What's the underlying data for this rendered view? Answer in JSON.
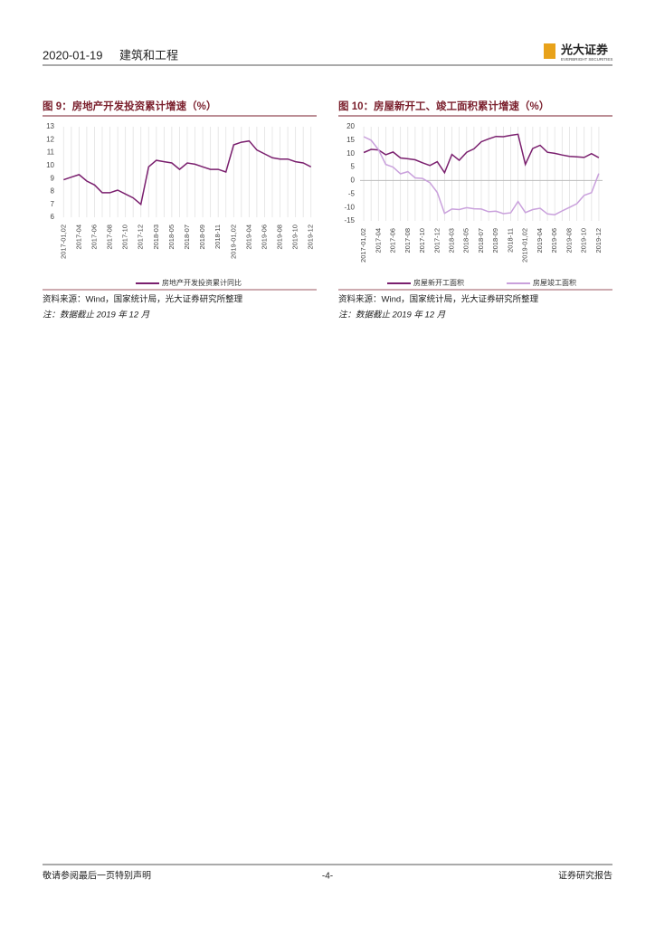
{
  "header": {
    "date": "2020-01-19",
    "section": "建筑和工程",
    "logo_cn": "光大证券",
    "logo_en": "EVERBRIGHT SECURITIES"
  },
  "chart_data": [
    {
      "type": "line",
      "title": "图 9：房地产开发投资累计增速（%）",
      "categories": [
        "2017-01,02",
        null,
        "2017-04",
        null,
        "2017-06",
        null,
        "2017-08",
        null,
        "2017-10",
        null,
        "2017-12",
        null,
        "2018-03",
        null,
        "2018-05",
        null,
        "2018-07",
        null,
        "2018-09",
        null,
        "2018-11",
        null,
        "2019-01,02",
        null,
        "2019-04",
        null,
        "2019-06",
        null,
        "2019-08",
        null,
        "2019-10",
        null,
        "2019-12"
      ],
      "series": [
        {
          "name": "房地产开发投资累计同比",
          "color": "#7a1f6e",
          "values": [
            8.9,
            9.1,
            9.3,
            8.8,
            8.5,
            7.9,
            7.9,
            8.1,
            7.8,
            7.5,
            7.0,
            9.9,
            10.4,
            10.3,
            10.2,
            9.7,
            10.2,
            10.1,
            9.9,
            9.7,
            9.7,
            9.5,
            11.6,
            11.8,
            11.9,
            11.2,
            10.9,
            10.6,
            10.5,
            10.5,
            10.3,
            10.2,
            9.9
          ]
        }
      ],
      "ylim": [
        6,
        13
      ],
      "yticks": [
        6,
        7,
        8,
        9,
        10,
        11,
        12,
        13
      ],
      "grid": "x",
      "source": "资料来源：Wind，国家统计局，光大证券研究所整理",
      "note": "注：数据截止 2019 年 12 月"
    },
    {
      "type": "line",
      "title": "图 10：房屋新开工、竣工面积累计增速（%）",
      "categories": [
        "2017-01,02",
        null,
        "2017-04",
        null,
        "2017-06",
        null,
        "2017-08",
        null,
        "2017-10",
        null,
        "2017-12",
        null,
        "2018-03",
        null,
        "2018-05",
        null,
        "2018-07",
        null,
        "2018-09",
        null,
        "2018-11",
        null,
        "2019-01,02",
        null,
        "2019-04",
        null,
        "2019-06",
        null,
        "2019-08",
        null,
        "2019-10",
        null,
        "2019-12"
      ],
      "series": [
        {
          "name": "房屋新开工面积",
          "color": "#7a1f6e",
          "values": [
            10.4,
            11.6,
            11.4,
            9.6,
            10.6,
            8.4,
            8.1,
            7.7,
            6.6,
            5.6,
            7.0,
            2.9,
            9.7,
            7.5,
            10.5,
            11.8,
            14.4,
            15.5,
            16.4,
            16.3,
            16.8,
            17.2,
            6.0,
            11.9,
            13.1,
            10.5,
            10.1,
            9.5,
            9.0,
            8.8,
            8.6,
            10.0,
            8.5
          ]
        },
        {
          "name": "房屋竣工面积",
          "color": "#c9a0dc",
          "values": [
            16.3,
            15.0,
            11.5,
            6.0,
            5.0,
            2.5,
            3.3,
            1.0,
            0.8,
            -0.8,
            -4.4,
            -12.2,
            -10.6,
            -10.8,
            -10.1,
            -10.5,
            -10.6,
            -11.6,
            -11.4,
            -12.3,
            -12.0,
            -7.8,
            -11.9,
            -10.8,
            -10.3,
            -12.4,
            -12.7,
            -11.3,
            -10.0,
            -8.6,
            -5.5,
            -4.5,
            2.6
          ]
        }
      ],
      "ylim": [
        -15,
        20
      ],
      "yticks": [
        -15,
        -10,
        -5,
        0,
        5,
        10,
        15,
        20
      ],
      "grid": "x",
      "source": "资料来源：Wind，国家统计局，光大证券研究所整理",
      "note": "注：数据截止 2019 年 12 月"
    }
  ],
  "footer": {
    "disclaimer": "敬请参阅最后一页特别声明",
    "page": "-4-",
    "label": "证券研究报告"
  }
}
